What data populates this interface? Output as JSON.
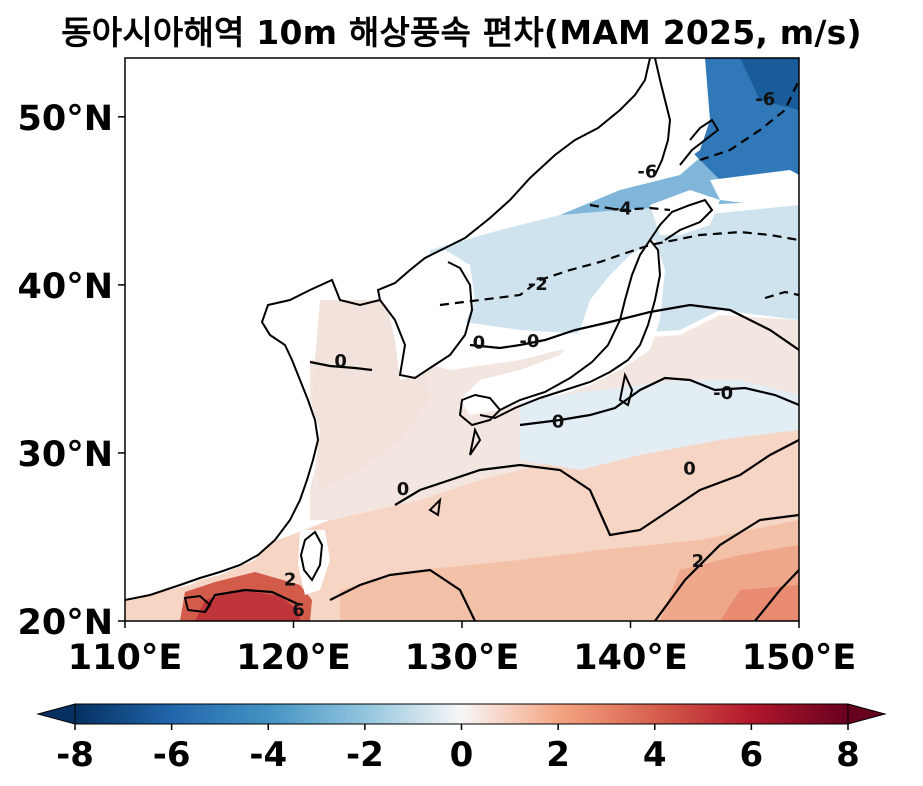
{
  "title": "동아시아해역 10m 해상풍속 편차(MAM 2025, m/s)",
  "map": {
    "lon_range": [
      110,
      150
    ],
    "lat_range": [
      20,
      53.5
    ],
    "x_ticks": [
      {
        "value": 110,
        "label": "110°E"
      },
      {
        "value": 120,
        "label": "120°E"
      },
      {
        "value": 130,
        "label": "130°E"
      },
      {
        "value": 140,
        "label": "140°E"
      },
      {
        "value": 150,
        "label": "150°E"
      }
    ],
    "y_ticks": [
      {
        "value": 20,
        "label": "20°N"
      },
      {
        "value": 30,
        "label": "30°N"
      },
      {
        "value": 40,
        "label": "40°N"
      },
      {
        "value": 50,
        "label": "50°N"
      }
    ],
    "contour_labels": [
      {
        "text": "-6",
        "lon": 148.0,
        "lat": 51.0
      },
      {
        "text": "-6",
        "lon": 141.0,
        "lat": 46.7
      },
      {
        "text": "-4",
        "lon": 139.5,
        "lat": 44.5
      },
      {
        "text": "-2",
        "lon": 134.5,
        "lat": 40.0
      },
      {
        "text": "0",
        "lon": 131.0,
        "lat": 36.5
      },
      {
        "text": "-0",
        "lon": 134.0,
        "lat": 36.6
      },
      {
        "text": "0",
        "lon": 122.8,
        "lat": 35.4
      },
      {
        "text": "-0",
        "lon": 145.5,
        "lat": 33.5
      },
      {
        "text": "0",
        "lon": 135.7,
        "lat": 31.8
      },
      {
        "text": "0",
        "lon": 143.5,
        "lat": 29.0
      },
      {
        "text": "0",
        "lon": 126.5,
        "lat": 27.8
      },
      {
        "text": "2",
        "lon": 144.0,
        "lat": 23.5
      },
      {
        "text": "2",
        "lon": 119.8,
        "lat": 22.4
      },
      {
        "text": "6",
        "lon": 120.3,
        "lat": 20.6
      }
    ]
  },
  "colorbar": {
    "colormap": "RdBu_r",
    "range": [
      -8,
      8
    ],
    "extend": "both",
    "ticks": [
      {
        "value": -8,
        "label": "-8"
      },
      {
        "value": -6,
        "label": "-6"
      },
      {
        "value": -4,
        "label": "-4"
      },
      {
        "value": -2,
        "label": "-2"
      },
      {
        "value": 0,
        "label": "0"
      },
      {
        "value": 2,
        "label": "2"
      },
      {
        "value": 4,
        "label": "4"
      },
      {
        "value": 6,
        "label": "6"
      },
      {
        "value": 8,
        "label": "8"
      }
    ]
  }
}
